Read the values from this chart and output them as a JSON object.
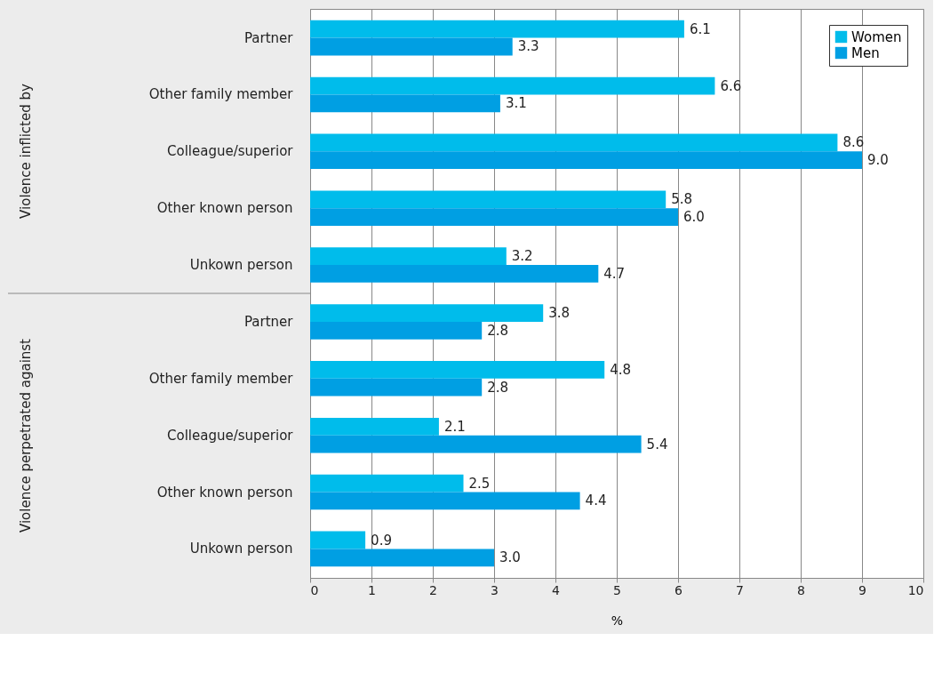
{
  "chart_data": {
    "type": "bar",
    "orientation": "horizontal",
    "xlabel": "%",
    "categories": [
      "Partner",
      "Other family member",
      "Colleague/superior",
      "Other known person",
      "Unkown person",
      "Partner",
      "Other family member",
      "Colleague/superior",
      "Other known person",
      "Unkown person"
    ],
    "series": [
      {
        "name": "Women",
        "color": "#00bceb",
        "values": [
          6.1,
          6.6,
          8.6,
          5.8,
          3.2,
          3.8,
          4.8,
          2.1,
          2.5,
          0.9
        ]
      },
      {
        "name": "Men",
        "color": "#009fe3",
        "values": [
          3.3,
          3.1,
          9.0,
          6.0,
          4.7,
          2.8,
          2.8,
          5.4,
          4.4,
          3.0
        ]
      }
    ],
    "value_labels": [
      [
        "6.1",
        "6.6",
        "8.6",
        "5.8",
        "3.2",
        "3.8",
        "4.8",
        "2.1",
        "2.5",
        "0.9"
      ],
      [
        "3.3",
        "3.1",
        "9.0",
        "6.0",
        "4.7",
        "2.8",
        "2.8",
        "5.4",
        "4.4",
        "3.0"
      ]
    ],
    "xlim": [
      0,
      10
    ],
    "xticks": [
      0,
      1,
      2,
      3,
      4,
      5,
      6,
      7,
      8,
      9,
      10
    ],
    "grid": "x",
    "legend": "top right",
    "annotations": [
      "Violence inflicted by",
      "Violence perpetrated against"
    ]
  }
}
